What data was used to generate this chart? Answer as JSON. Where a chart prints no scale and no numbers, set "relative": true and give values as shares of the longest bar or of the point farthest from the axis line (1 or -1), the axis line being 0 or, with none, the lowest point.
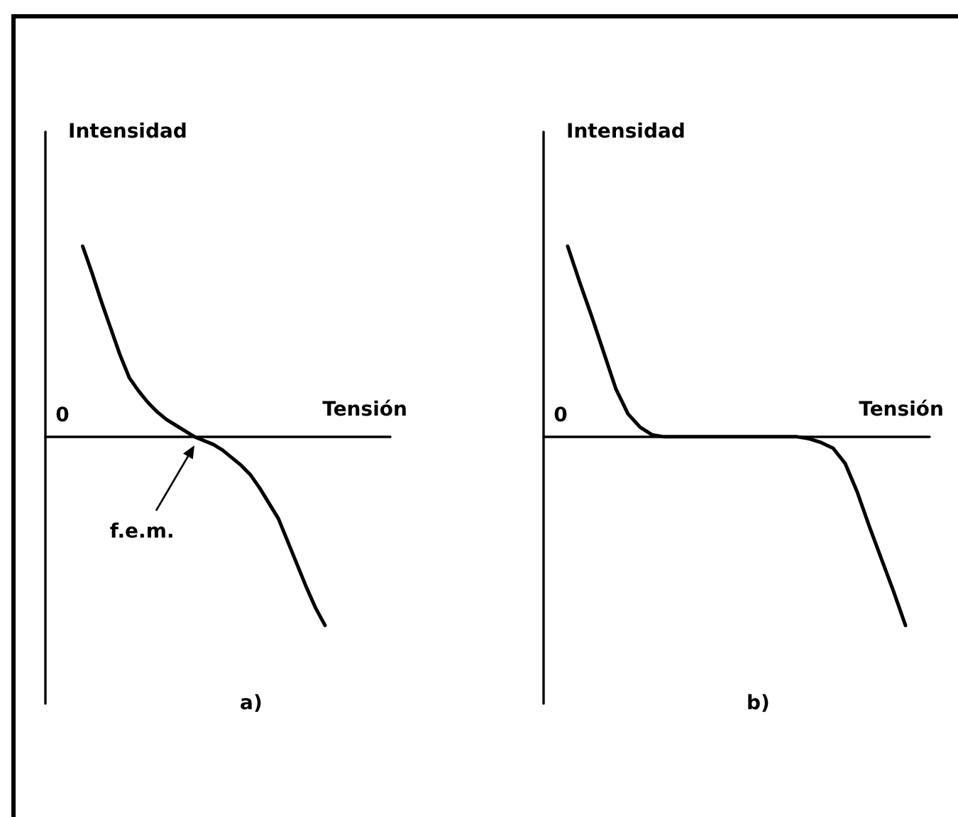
{
  "chart_data": [
    {
      "type": "line",
      "title": "a)",
      "xlabel": "Tensión",
      "ylabel": "Intensidad",
      "relative": true,
      "categories": [
        null,
        null,
        null,
        null,
        null,
        null,
        null,
        null,
        null,
        null,
        null,
        null,
        null,
        null,
        null,
        null,
        null,
        null,
        null,
        null,
        null,
        null,
        null,
        null,
        null,
        null,
        null,
        null,
        null,
        null,
        null,
        null,
        null,
        null,
        null,
        null,
        null,
        null
      ],
      "series": [
        {
          "color": "#000000",
          "values": [
            null,
            null,
            null,
            null,
            1,
            0.86,
            0.71,
            0.57,
            0.43,
            0.31,
            0.24,
            0.18,
            0.13,
            0.09,
            0.06,
            0.03,
            0,
            -0.02,
            -0.04,
            -0.07,
            -0.11,
            -0.15,
            -0.2,
            -0.27,
            -0.35,
            -0.43,
            -0.55,
            -0.67,
            -0.79,
            -0.9,
            -0.99,
            null,
            null,
            null,
            null,
            null,
            null,
            null
          ]
        }
      ],
      "annotations": [
        "0",
        "f.e.m."
      ]
    },
    {
      "type": "line",
      "title": "b)",
      "xlabel": "Tensión",
      "ylabel": "Intensidad",
      "relative": true,
      "categories": [
        null,
        null,
        null,
        null,
        null,
        null,
        null,
        null,
        null,
        null,
        null,
        null,
        null,
        null,
        null,
        null,
        null,
        null,
        null,
        null,
        null,
        null,
        null,
        null,
        null,
        null,
        null,
        null,
        null,
        null,
        null,
        null,
        null
      ],
      "series": [
        {
          "color": "#000000",
          "values": [
            null,
            null,
            1,
            0.81,
            0.63,
            0.44,
            0.25,
            0.12,
            0.05,
            0.01,
            0,
            0,
            0,
            0,
            0,
            0,
            0,
            0,
            0,
            0,
            0,
            0,
            -0.01,
            -0.03,
            -0.06,
            -0.14,
            -0.29,
            -0.47,
            -0.64,
            -0.81,
            -0.99,
            null,
            null
          ]
        }
      ],
      "annotations": [
        "0"
      ]
    }
  ]
}
